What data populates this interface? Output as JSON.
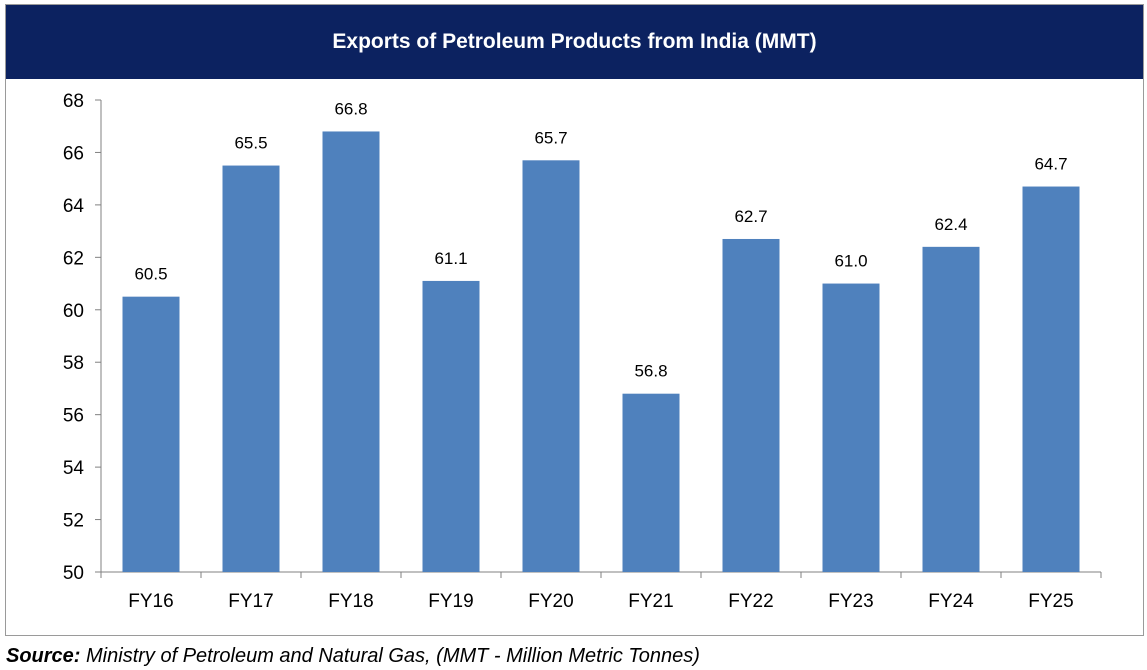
{
  "chart_data": {
    "type": "bar",
    "title": "Exports of Petroleum Products from India (MMT)",
    "xlabel": "",
    "ylabel": "",
    "categories": [
      "FY16",
      "FY17",
      "FY18",
      "FY19",
      "FY20",
      "FY21",
      "FY22",
      "FY23",
      "FY24",
      "FY25"
    ],
    "values": [
      60.5,
      65.5,
      66.8,
      61.1,
      65.7,
      56.8,
      62.7,
      61.0,
      62.4,
      64.7
    ],
    "data_labels": [
      "60.5",
      "65.5",
      "66.8",
      "61.1",
      "65.7",
      "56.8",
      "62.7",
      "61.0",
      "62.4",
      "64.7"
    ],
    "ylim": [
      50,
      68
    ],
    "yticks": [
      "50",
      "52",
      "54",
      "56",
      "58",
      "60",
      "62",
      "64",
      "66",
      "68"
    ],
    "grid": false,
    "legend": "none",
    "bar_color": "#4f81bd",
    "title_bar_color": "#0c2260"
  },
  "source": {
    "label": "Source:",
    "text": " Ministry of Petroleum and Natural Gas, (MMT - Million Metric Tonnes)"
  }
}
